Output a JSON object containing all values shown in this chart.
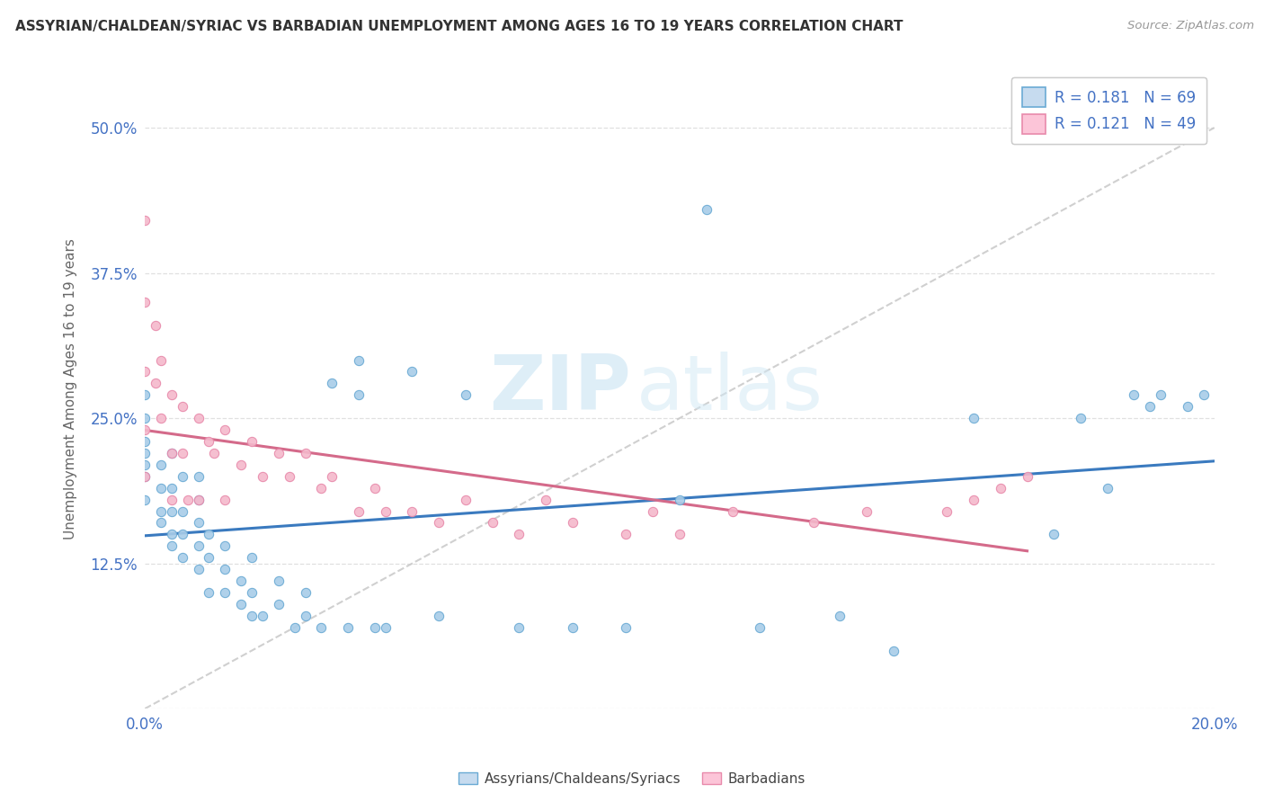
{
  "title": "ASSYRIAN/CHALDEAN/SYRIAC VS BARBADIAN UNEMPLOYMENT AMONG AGES 16 TO 19 YEARS CORRELATION CHART",
  "source": "Source: ZipAtlas.com",
  "ylabel": "Unemployment Among Ages 16 to 19 years",
  "xlim": [
    0.0,
    0.2
  ],
  "ylim": [
    0.0,
    0.55
  ],
  "yticks": [
    0.0,
    0.125,
    0.25,
    0.375,
    0.5
  ],
  "ytick_labels": [
    "",
    "12.5%",
    "25.0%",
    "37.5%",
    "50.0%"
  ],
  "xtick_labels": [
    "0.0%",
    "20.0%"
  ],
  "xticks": [
    0.0,
    0.2
  ],
  "legend_r1": "R = 0.181",
  "legend_n1": "N = 69",
  "legend_r2": "R = 0.121",
  "legend_n2": "N = 49",
  "blue_scatter": "#a8cce8",
  "pink_scatter": "#f4b8cb",
  "blue_edge": "#6aaad4",
  "pink_edge": "#e88aab",
  "blue_legend_face": "#c6dbef",
  "pink_legend_face": "#fcc5d8",
  "blue_legend_edge": "#6aaad4",
  "pink_legend_edge": "#e88aab",
  "line_blue": "#3a7abf",
  "line_pink": "#d46a8a",
  "trend_gray": "#c8c8c8",
  "watermark_color": "#d0e8f5",
  "label_assyrian": "Assyrians/Chaldeans/Syriacs",
  "label_barbadian": "Barbadians",
  "title_color": "#333333",
  "source_color": "#999999",
  "tick_color": "#4472c4",
  "ylabel_color": "#666666",
  "gridline_color": "#e0e0e0",
  "assyrian_x": [
    0.0,
    0.0,
    0.0,
    0.0,
    0.0,
    0.0,
    0.0,
    0.003,
    0.003,
    0.003,
    0.003,
    0.005,
    0.005,
    0.005,
    0.005,
    0.005,
    0.007,
    0.007,
    0.007,
    0.007,
    0.01,
    0.01,
    0.01,
    0.01,
    0.01,
    0.012,
    0.012,
    0.012,
    0.015,
    0.015,
    0.015,
    0.018,
    0.018,
    0.02,
    0.02,
    0.02,
    0.022,
    0.025,
    0.025,
    0.028,
    0.03,
    0.03,
    0.033,
    0.035,
    0.038,
    0.04,
    0.04,
    0.043,
    0.045,
    0.05,
    0.055,
    0.06,
    0.07,
    0.08,
    0.09,
    0.1,
    0.105,
    0.115,
    0.13,
    0.14,
    0.155,
    0.17,
    0.175,
    0.18,
    0.185,
    0.188,
    0.19,
    0.195,
    0.198
  ],
  "assyrian_y": [
    0.18,
    0.2,
    0.21,
    0.22,
    0.23,
    0.25,
    0.27,
    0.16,
    0.17,
    0.19,
    0.21,
    0.14,
    0.15,
    0.17,
    0.19,
    0.22,
    0.13,
    0.15,
    0.17,
    0.2,
    0.12,
    0.14,
    0.16,
    0.18,
    0.2,
    0.1,
    0.13,
    0.15,
    0.1,
    0.12,
    0.14,
    0.09,
    0.11,
    0.08,
    0.1,
    0.13,
    0.08,
    0.09,
    0.11,
    0.07,
    0.08,
    0.1,
    0.07,
    0.28,
    0.07,
    0.27,
    0.3,
    0.07,
    0.07,
    0.29,
    0.08,
    0.27,
    0.07,
    0.07,
    0.07,
    0.18,
    0.43,
    0.07,
    0.08,
    0.05,
    0.25,
    0.15,
    0.25,
    0.19,
    0.27,
    0.26,
    0.27,
    0.26,
    0.27
  ],
  "barbadian_x": [
    0.0,
    0.0,
    0.0,
    0.0,
    0.0,
    0.002,
    0.002,
    0.003,
    0.003,
    0.005,
    0.005,
    0.005,
    0.007,
    0.007,
    0.008,
    0.01,
    0.01,
    0.012,
    0.013,
    0.015,
    0.015,
    0.018,
    0.02,
    0.022,
    0.025,
    0.027,
    0.03,
    0.033,
    0.035,
    0.04,
    0.043,
    0.045,
    0.05,
    0.055,
    0.06,
    0.065,
    0.07,
    0.075,
    0.08,
    0.09,
    0.095,
    0.1,
    0.11,
    0.125,
    0.135,
    0.15,
    0.155,
    0.16,
    0.165
  ],
  "barbadian_y": [
    0.42,
    0.35,
    0.29,
    0.24,
    0.2,
    0.33,
    0.28,
    0.3,
    0.25,
    0.27,
    0.22,
    0.18,
    0.26,
    0.22,
    0.18,
    0.25,
    0.18,
    0.23,
    0.22,
    0.24,
    0.18,
    0.21,
    0.23,
    0.2,
    0.22,
    0.2,
    0.22,
    0.19,
    0.2,
    0.17,
    0.19,
    0.17,
    0.17,
    0.16,
    0.18,
    0.16,
    0.15,
    0.18,
    0.16,
    0.15,
    0.17,
    0.15,
    0.17,
    0.16,
    0.17,
    0.17,
    0.18,
    0.19,
    0.2
  ]
}
